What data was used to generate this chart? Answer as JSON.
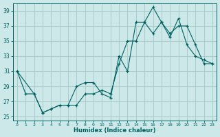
{
  "xlabel": "Humidex (Indice chaleur)",
  "xlim": [
    -0.5,
    23.5
  ],
  "ylim": [
    24.5,
    40
  ],
  "yticks": [
    25,
    27,
    29,
    31,
    33,
    35,
    37,
    39
  ],
  "xticks": [
    0,
    1,
    2,
    3,
    4,
    5,
    6,
    7,
    8,
    9,
    10,
    11,
    12,
    13,
    14,
    15,
    16,
    17,
    18,
    19,
    20,
    21,
    22,
    23
  ],
  "bg_color": "#cce8e8",
  "grid_color": "#aacccc",
  "line_color": "#006060",
  "line1_x": [
    0,
    1,
    2,
    3,
    4,
    5,
    6,
    7,
    8,
    9,
    10,
    11,
    12,
    13,
    14,
    15,
    16,
    17,
    18,
    19,
    20,
    21,
    22,
    23
  ],
  "line1_y": [
    31,
    28,
    28,
    25.5,
    26,
    26.5,
    26.5,
    29,
    29.5,
    29.5,
    28,
    27.5,
    33,
    31,
    37.5,
    37.5,
    39.5,
    37.5,
    35.5,
    38,
    34.5,
    33,
    32.5,
    32
  ],
  "line2_x": [
    0,
    2,
    3,
    4,
    5,
    6,
    7,
    8,
    9,
    10,
    11,
    12,
    13,
    14,
    15,
    16,
    17,
    18,
    19,
    20,
    21,
    22,
    23
  ],
  "line2_y": [
    31,
    28,
    25.5,
    26,
    26.5,
    26.5,
    26.5,
    28,
    28,
    28.5,
    28,
    32,
    35,
    35,
    37.5,
    36,
    37.5,
    36,
    37,
    37,
    34.5,
    32,
    32
  ]
}
